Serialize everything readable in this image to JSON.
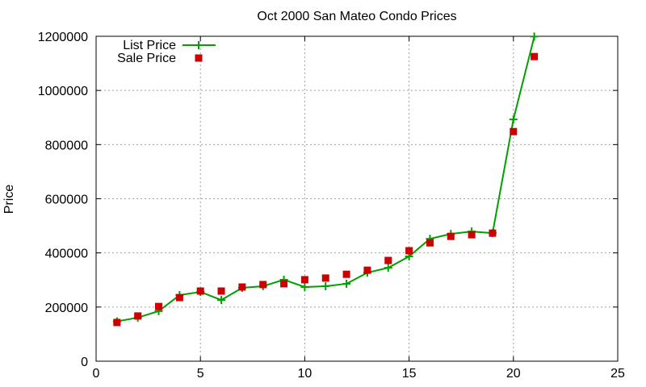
{
  "chart_data": {
    "type": "line",
    "title": "Oct 2000 San Mateo Condo Prices",
    "xlabel": "",
    "ylabel": "Price",
    "xlim": [
      0,
      25
    ],
    "ylim": [
      0,
      1200000
    ],
    "xticks": [
      0,
      5,
      10,
      15,
      20,
      25
    ],
    "yticks": [
      0,
      200000,
      400000,
      600000,
      800000,
      1000000,
      1200000
    ],
    "grid": true,
    "legend_position": "top-left",
    "x": [
      1,
      2,
      3,
      4,
      5,
      6,
      7,
      8,
      9,
      10,
      11,
      12,
      13,
      14,
      15,
      16,
      17,
      18,
      19,
      20,
      21
    ],
    "series": [
      {
        "name": "List Price",
        "style": "linespoints",
        "color": "#00a000",
        "marker": "plus",
        "values": [
          147000,
          161000,
          185000,
          244000,
          256000,
          226000,
          271000,
          277000,
          301000,
          274000,
          277000,
          286000,
          327000,
          345000,
          387000,
          452000,
          470000,
          479000,
          473000,
          893000,
          1199000
        ]
      },
      {
        "name": "Sale Price",
        "style": "points",
        "color": "#cc0000",
        "marker": "square",
        "values": [
          143000,
          167000,
          202000,
          235000,
          259000,
          259000,
          274000,
          283000,
          286000,
          301000,
          307000,
          321000,
          336000,
          372000,
          408000,
          437000,
          461000,
          467000,
          473000,
          848000,
          1125000
        ]
      }
    ]
  }
}
